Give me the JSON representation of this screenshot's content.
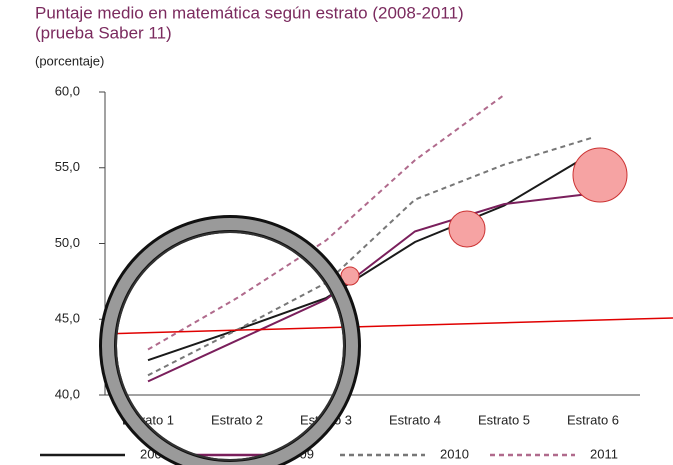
{
  "chart_data": {
    "type": "line",
    "title": "Puntaje medio en matemática según estrato (2008-2011)",
    "subtitle": "(prueba Saber 11)",
    "y_label": "(porcentaje)",
    "categories": [
      "Estrato 1",
      "Estrato 2",
      "Estrato 3",
      "Estrato 4",
      "Estrato 5",
      "Estrato 6"
    ],
    "series": [
      {
        "name": "2008",
        "color": "#1a1a1a",
        "dashed": false,
        "values": [
          42.3,
          44.3,
          46.4,
          50.1,
          52.5,
          56.0
        ]
      },
      {
        "name": "2009",
        "color": "#7a1f5c",
        "dashed": false,
        "values": [
          40.9,
          43.6,
          46.3,
          50.8,
          52.6,
          53.3
        ]
      },
      {
        "name": "2010",
        "color": "#777777",
        "dashed": true,
        "values": [
          41.3,
          44.3,
          47.4,
          52.9,
          55.2,
          57.0
        ]
      },
      {
        "name": "2011",
        "color": "#b06a8c",
        "dashed": true,
        "values": [
          43.0,
          46.4,
          50.2,
          55.5,
          59.8,
          null
        ]
      }
    ],
    "ylim": [
      40,
      60
    ],
    "yticks": [
      {
        "value": 40,
        "label": "40,0"
      },
      {
        "value": 45,
        "label": "45,0"
      },
      {
        "value": 50,
        "label": "50,0"
      },
      {
        "value": 55,
        "label": "55,0"
      },
      {
        "value": 60,
        "label": "60,0"
      }
    ],
    "grid": false
  }
}
